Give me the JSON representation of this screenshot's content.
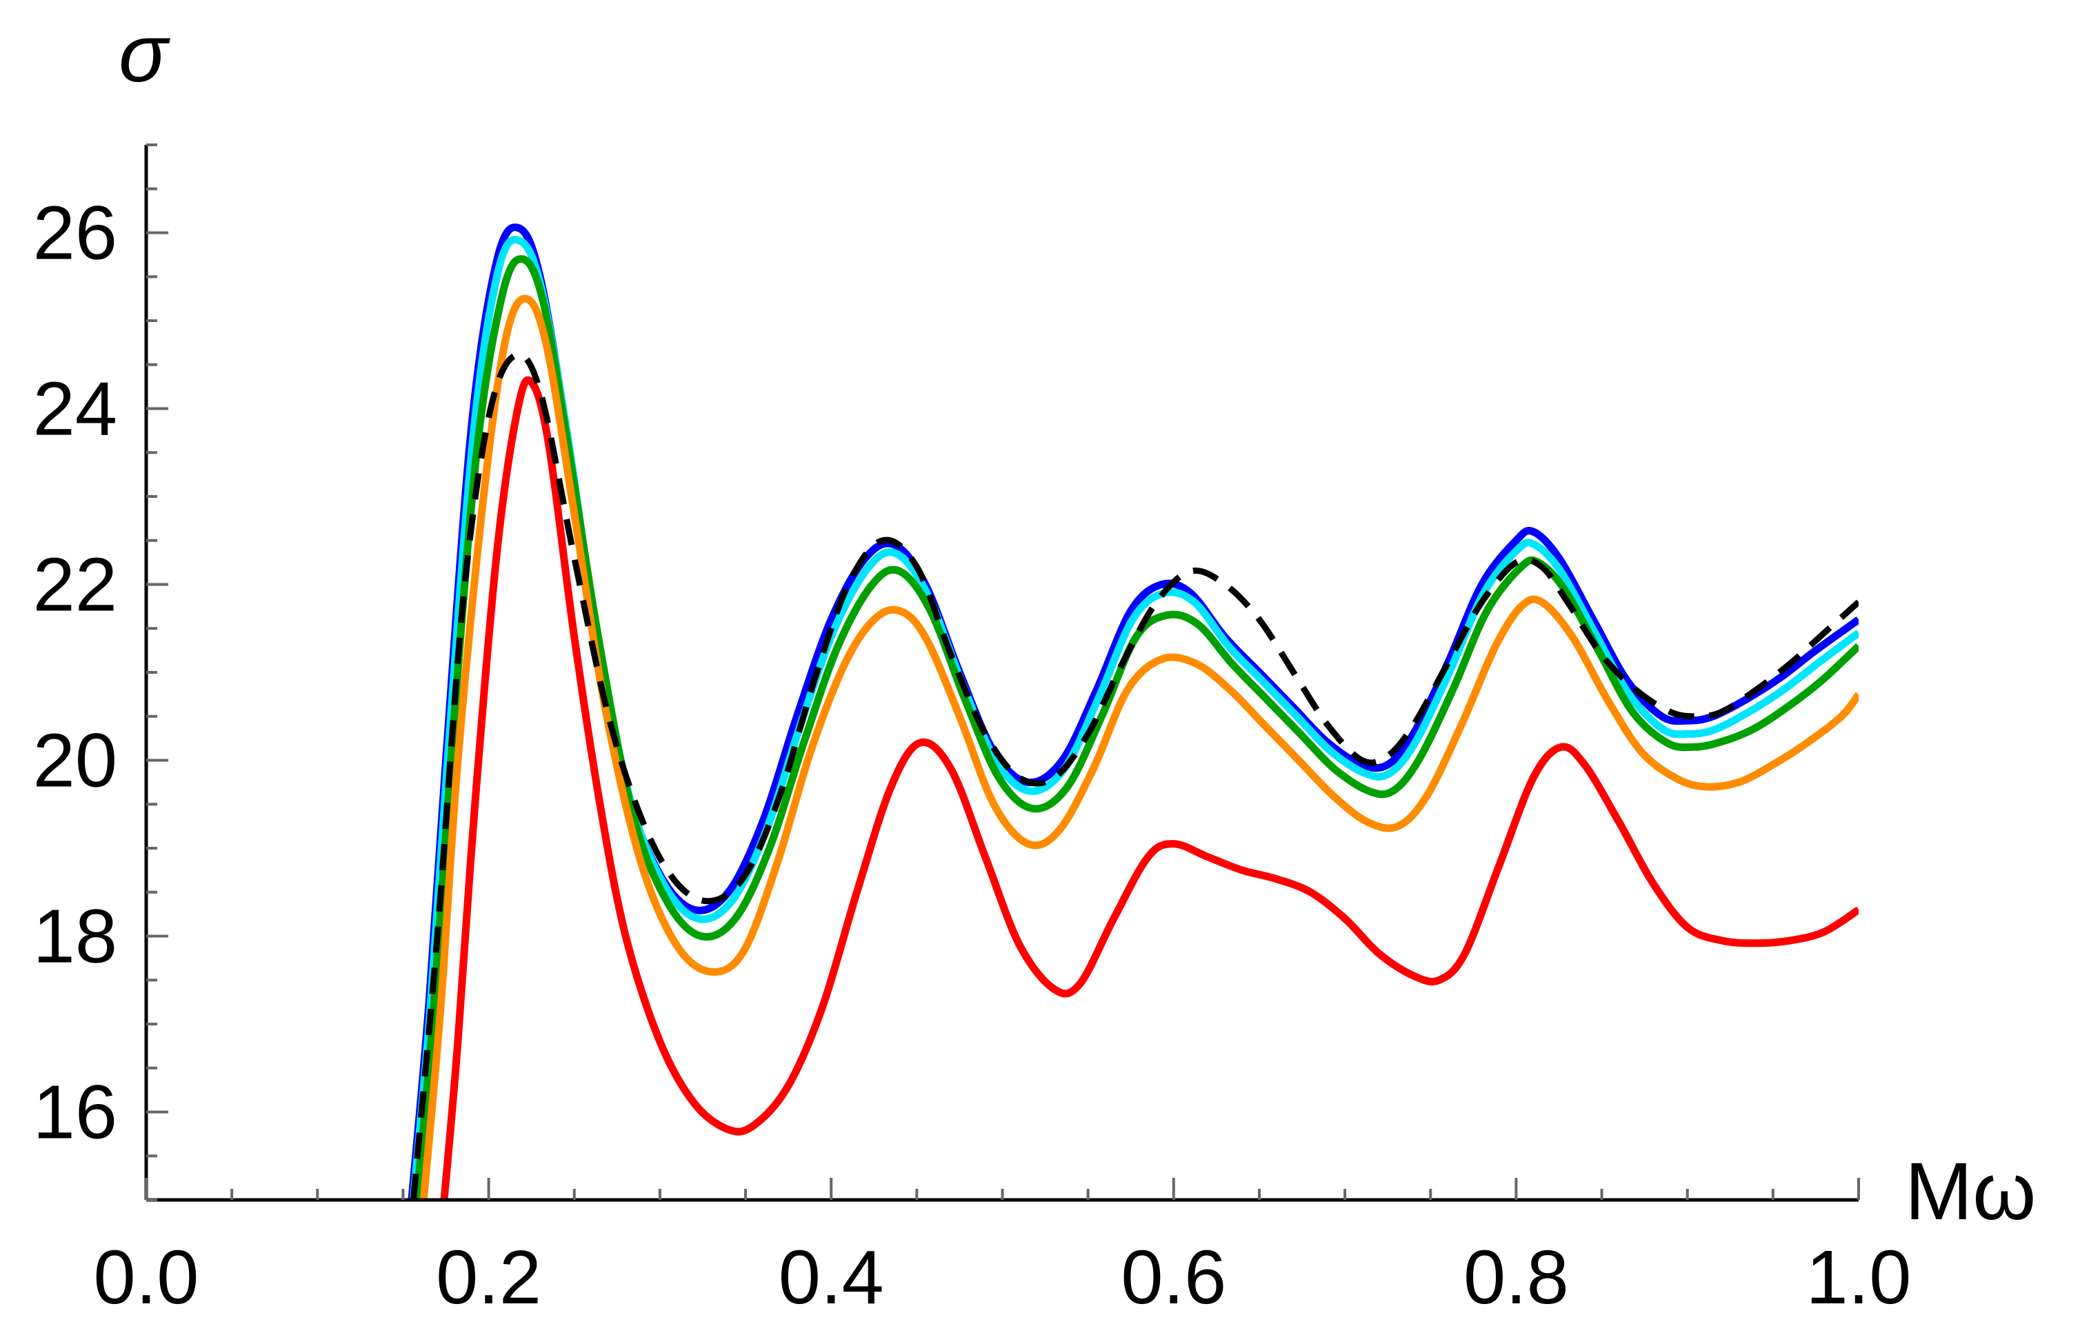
{
  "chart_data": {
    "type": "line",
    "xlabel": "Mω",
    "ylabel": "σ",
    "xlim": [
      0.0,
      1.0
    ],
    "ylim": [
      15.0,
      27.0
    ],
    "x_ticks": [
      "0.0",
      "0.2",
      "0.4",
      "0.6",
      "0.8",
      "1.0"
    ],
    "y_ticks": [
      "16",
      "18",
      "20",
      "22",
      "24",
      "26"
    ],
    "x_tick_values": [
      0.0,
      0.2,
      0.4,
      0.6,
      0.8,
      1.0
    ],
    "y_tick_values": [
      16,
      18,
      20,
      22,
      24,
      26
    ],
    "grid": false,
    "legend": "none",
    "series": [
      {
        "color": "#000000",
        "dashed": true,
        "points": [
          [
            0.156,
            15.0
          ],
          [
            0.17,
            18.0
          ],
          [
            0.185,
            21.8
          ],
          [
            0.2,
            23.9
          ],
          [
            0.215,
            24.6
          ],
          [
            0.23,
            24.2
          ],
          [
            0.25,
            22.3
          ],
          [
            0.27,
            20.5
          ],
          [
            0.29,
            19.3
          ],
          [
            0.31,
            18.6
          ],
          [
            0.33,
            18.4
          ],
          [
            0.35,
            18.7
          ],
          [
            0.37,
            19.6
          ],
          [
            0.39,
            20.9
          ],
          [
            0.41,
            22.0
          ],
          [
            0.43,
            22.5
          ],
          [
            0.45,
            22.2
          ],
          [
            0.47,
            21.2
          ],
          [
            0.49,
            20.3
          ],
          [
            0.51,
            19.8
          ],
          [
            0.53,
            19.8
          ],
          [
            0.55,
            20.3
          ],
          [
            0.57,
            21.1
          ],
          [
            0.59,
            21.8
          ],
          [
            0.61,
            22.15
          ],
          [
            0.63,
            22.0
          ],
          [
            0.65,
            21.6
          ],
          [
            0.67,
            21.0
          ],
          [
            0.69,
            20.4
          ],
          [
            0.71,
            20.0
          ],
          [
            0.725,
            20.05
          ],
          [
            0.74,
            20.4
          ],
          [
            0.76,
            21.1
          ],
          [
            0.78,
            21.8
          ],
          [
            0.8,
            22.25
          ],
          [
            0.815,
            22.2
          ],
          [
            0.83,
            21.8
          ],
          [
            0.85,
            21.2
          ],
          [
            0.87,
            20.8
          ],
          [
            0.89,
            20.55
          ],
          [
            0.905,
            20.5
          ],
          [
            0.92,
            20.55
          ],
          [
            0.94,
            20.8
          ],
          [
            0.96,
            21.1
          ],
          [
            0.98,
            21.45
          ],
          [
            1.0,
            21.8
          ]
        ]
      },
      {
        "color": "#0000ff",
        "dashed": false,
        "points": [
          [
            0.155,
            15.0
          ],
          [
            0.165,
            17.2
          ],
          [
            0.175,
            20.0
          ],
          [
            0.19,
            23.8
          ],
          [
            0.205,
            25.7
          ],
          [
            0.218,
            26.05
          ],
          [
            0.23,
            25.5
          ],
          [
            0.245,
            23.8
          ],
          [
            0.26,
            21.7
          ],
          [
            0.28,
            19.7
          ],
          [
            0.3,
            18.7
          ],
          [
            0.32,
            18.3
          ],
          [
            0.34,
            18.5
          ],
          [
            0.36,
            19.3
          ],
          [
            0.38,
            20.5
          ],
          [
            0.4,
            21.6
          ],
          [
            0.42,
            22.3
          ],
          [
            0.437,
            22.45
          ],
          [
            0.455,
            22.0
          ],
          [
            0.475,
            21.0
          ],
          [
            0.495,
            20.1
          ],
          [
            0.515,
            19.75
          ],
          [
            0.535,
            20.0
          ],
          [
            0.555,
            20.8
          ],
          [
            0.575,
            21.7
          ],
          [
            0.593,
            22.0
          ],
          [
            0.61,
            21.9
          ],
          [
            0.63,
            21.4
          ],
          [
            0.65,
            21.0
          ],
          [
            0.67,
            20.6
          ],
          [
            0.69,
            20.2
          ],
          [
            0.71,
            19.95
          ],
          [
            0.725,
            19.95
          ],
          [
            0.74,
            20.3
          ],
          [
            0.76,
            21.1
          ],
          [
            0.78,
            22.0
          ],
          [
            0.8,
            22.5
          ],
          [
            0.81,
            22.6
          ],
          [
            0.825,
            22.3
          ],
          [
            0.845,
            21.6
          ],
          [
            0.865,
            20.9
          ],
          [
            0.885,
            20.5
          ],
          [
            0.9,
            20.45
          ],
          [
            0.915,
            20.5
          ],
          [
            0.935,
            20.7
          ],
          [
            0.955,
            20.95
          ],
          [
            0.975,
            21.25
          ],
          [
            1.0,
            21.6
          ]
        ]
      },
      {
        "color": "#00e5ff",
        "dashed": false,
        "points": [
          [
            0.156,
            15.0
          ],
          [
            0.166,
            17.2
          ],
          [
            0.176,
            20.0
          ],
          [
            0.191,
            23.7
          ],
          [
            0.206,
            25.6
          ],
          [
            0.219,
            25.9
          ],
          [
            0.231,
            25.35
          ],
          [
            0.246,
            23.7
          ],
          [
            0.262,
            21.6
          ],
          [
            0.282,
            19.6
          ],
          [
            0.302,
            18.6
          ],
          [
            0.322,
            18.2
          ],
          [
            0.342,
            18.4
          ],
          [
            0.362,
            19.2
          ],
          [
            0.382,
            20.4
          ],
          [
            0.402,
            21.5
          ],
          [
            0.422,
            22.2
          ],
          [
            0.438,
            22.35
          ],
          [
            0.456,
            21.9
          ],
          [
            0.476,
            20.9
          ],
          [
            0.496,
            20.0
          ],
          [
            0.516,
            19.65
          ],
          [
            0.536,
            19.9
          ],
          [
            0.556,
            20.7
          ],
          [
            0.576,
            21.6
          ],
          [
            0.594,
            21.9
          ],
          [
            0.612,
            21.8
          ],
          [
            0.632,
            21.3
          ],
          [
            0.652,
            20.9
          ],
          [
            0.672,
            20.5
          ],
          [
            0.692,
            20.1
          ],
          [
            0.712,
            19.85
          ],
          [
            0.726,
            19.85
          ],
          [
            0.741,
            20.2
          ],
          [
            0.761,
            21.0
          ],
          [
            0.781,
            21.9
          ],
          [
            0.801,
            22.4
          ],
          [
            0.811,
            22.45
          ],
          [
            0.826,
            22.15
          ],
          [
            0.846,
            21.45
          ],
          [
            0.866,
            20.75
          ],
          [
            0.886,
            20.35
          ],
          [
            0.901,
            20.3
          ],
          [
            0.916,
            20.35
          ],
          [
            0.936,
            20.55
          ],
          [
            0.956,
            20.8
          ],
          [
            0.976,
            21.1
          ],
          [
            1.0,
            21.45
          ]
        ]
      },
      {
        "color": "#00a000",
        "dashed": false,
        "points": [
          [
            0.158,
            15.0
          ],
          [
            0.168,
            17.2
          ],
          [
            0.178,
            20.0
          ],
          [
            0.193,
            23.5
          ],
          [
            0.208,
            25.3
          ],
          [
            0.22,
            25.7
          ],
          [
            0.232,
            25.2
          ],
          [
            0.247,
            23.5
          ],
          [
            0.264,
            21.4
          ],
          [
            0.284,
            19.4
          ],
          [
            0.304,
            18.4
          ],
          [
            0.324,
            18.0
          ],
          [
            0.344,
            18.2
          ],
          [
            0.364,
            19.0
          ],
          [
            0.384,
            20.2
          ],
          [
            0.404,
            21.3
          ],
          [
            0.424,
            22.0
          ],
          [
            0.44,
            22.15
          ],
          [
            0.458,
            21.7
          ],
          [
            0.478,
            20.7
          ],
          [
            0.498,
            19.8
          ],
          [
            0.518,
            19.45
          ],
          [
            0.538,
            19.7
          ],
          [
            0.558,
            20.5
          ],
          [
            0.578,
            21.4
          ],
          [
            0.596,
            21.65
          ],
          [
            0.614,
            21.55
          ],
          [
            0.634,
            21.1
          ],
          [
            0.654,
            20.7
          ],
          [
            0.674,
            20.3
          ],
          [
            0.694,
            19.9
          ],
          [
            0.714,
            19.65
          ],
          [
            0.728,
            19.65
          ],
          [
            0.743,
            20.0
          ],
          [
            0.763,
            20.8
          ],
          [
            0.783,
            21.7
          ],
          [
            0.803,
            22.2
          ],
          [
            0.813,
            22.25
          ],
          [
            0.828,
            21.95
          ],
          [
            0.848,
            21.25
          ],
          [
            0.868,
            20.55
          ],
          [
            0.888,
            20.2
          ],
          [
            0.903,
            20.15
          ],
          [
            0.918,
            20.2
          ],
          [
            0.938,
            20.35
          ],
          [
            0.958,
            20.6
          ],
          [
            0.978,
            20.9
          ],
          [
            1.0,
            21.3
          ]
        ]
      },
      {
        "color": "#ff8c00",
        "dashed": false,
        "points": [
          [
            0.162,
            15.0
          ],
          [
            0.172,
            17.2
          ],
          [
            0.182,
            20.0
          ],
          [
            0.197,
            23.0
          ],
          [
            0.21,
            24.8
          ],
          [
            0.222,
            25.25
          ],
          [
            0.234,
            24.7
          ],
          [
            0.25,
            22.8
          ],
          [
            0.268,
            20.6
          ],
          [
            0.288,
            18.9
          ],
          [
            0.308,
            17.95
          ],
          [
            0.328,
            17.6
          ],
          [
            0.348,
            17.8
          ],
          [
            0.368,
            18.8
          ],
          [
            0.388,
            20.1
          ],
          [
            0.408,
            21.1
          ],
          [
            0.425,
            21.6
          ],
          [
            0.44,
            21.7
          ],
          [
            0.455,
            21.4
          ],
          [
            0.475,
            20.5
          ],
          [
            0.495,
            19.5
          ],
          [
            0.515,
            19.05
          ],
          [
            0.533,
            19.2
          ],
          [
            0.553,
            19.9
          ],
          [
            0.573,
            20.8
          ],
          [
            0.593,
            21.15
          ],
          [
            0.613,
            21.1
          ],
          [
            0.633,
            20.8
          ],
          [
            0.653,
            20.4
          ],
          [
            0.673,
            20.0
          ],
          [
            0.693,
            19.6
          ],
          [
            0.713,
            19.3
          ],
          [
            0.731,
            19.25
          ],
          [
            0.748,
            19.6
          ],
          [
            0.768,
            20.4
          ],
          [
            0.788,
            21.3
          ],
          [
            0.803,
            21.75
          ],
          [
            0.815,
            21.8
          ],
          [
            0.833,
            21.4
          ],
          [
            0.853,
            20.7
          ],
          [
            0.873,
            20.1
          ],
          [
            0.893,
            19.8
          ],
          [
            0.91,
            19.7
          ],
          [
            0.93,
            19.75
          ],
          [
            0.95,
            19.95
          ],
          [
            0.97,
            20.2
          ],
          [
            0.99,
            20.5
          ],
          [
            1.0,
            20.75
          ]
        ]
      },
      {
        "color": "#ff0000",
        "dashed": false,
        "points": [
          [
            0.174,
            15.0
          ],
          [
            0.182,
            16.8
          ],
          [
            0.192,
            19.5
          ],
          [
            0.205,
            22.4
          ],
          [
            0.217,
            24.0
          ],
          [
            0.225,
            24.3
          ],
          [
            0.235,
            23.6
          ],
          [
            0.25,
            21.4
          ],
          [
            0.265,
            19.5
          ],
          [
            0.28,
            18.0
          ],
          [
            0.3,
            16.8
          ],
          [
            0.32,
            16.1
          ],
          [
            0.34,
            15.8
          ],
          [
            0.355,
            15.85
          ],
          [
            0.375,
            16.3
          ],
          [
            0.395,
            17.2
          ],
          [
            0.415,
            18.5
          ],
          [
            0.435,
            19.7
          ],
          [
            0.452,
            20.2
          ],
          [
            0.47,
            19.9
          ],
          [
            0.49,
            18.9
          ],
          [
            0.51,
            17.9
          ],
          [
            0.53,
            17.4
          ],
          [
            0.545,
            17.45
          ],
          [
            0.565,
            18.2
          ],
          [
            0.585,
            18.9
          ],
          [
            0.6,
            19.05
          ],
          [
            0.62,
            18.9
          ],
          [
            0.64,
            18.75
          ],
          [
            0.66,
            18.65
          ],
          [
            0.68,
            18.5
          ],
          [
            0.7,
            18.2
          ],
          [
            0.72,
            17.8
          ],
          [
            0.74,
            17.55
          ],
          [
            0.755,
            17.5
          ],
          [
            0.77,
            17.8
          ],
          [
            0.79,
            18.8
          ],
          [
            0.81,
            19.8
          ],
          [
            0.826,
            20.15
          ],
          [
            0.84,
            19.95
          ],
          [
            0.86,
            19.3
          ],
          [
            0.88,
            18.6
          ],
          [
            0.9,
            18.1
          ],
          [
            0.92,
            17.95
          ],
          [
            0.94,
            17.92
          ],
          [
            0.96,
            17.95
          ],
          [
            0.98,
            18.05
          ],
          [
            1.0,
            18.3
          ]
        ]
      }
    ]
  }
}
